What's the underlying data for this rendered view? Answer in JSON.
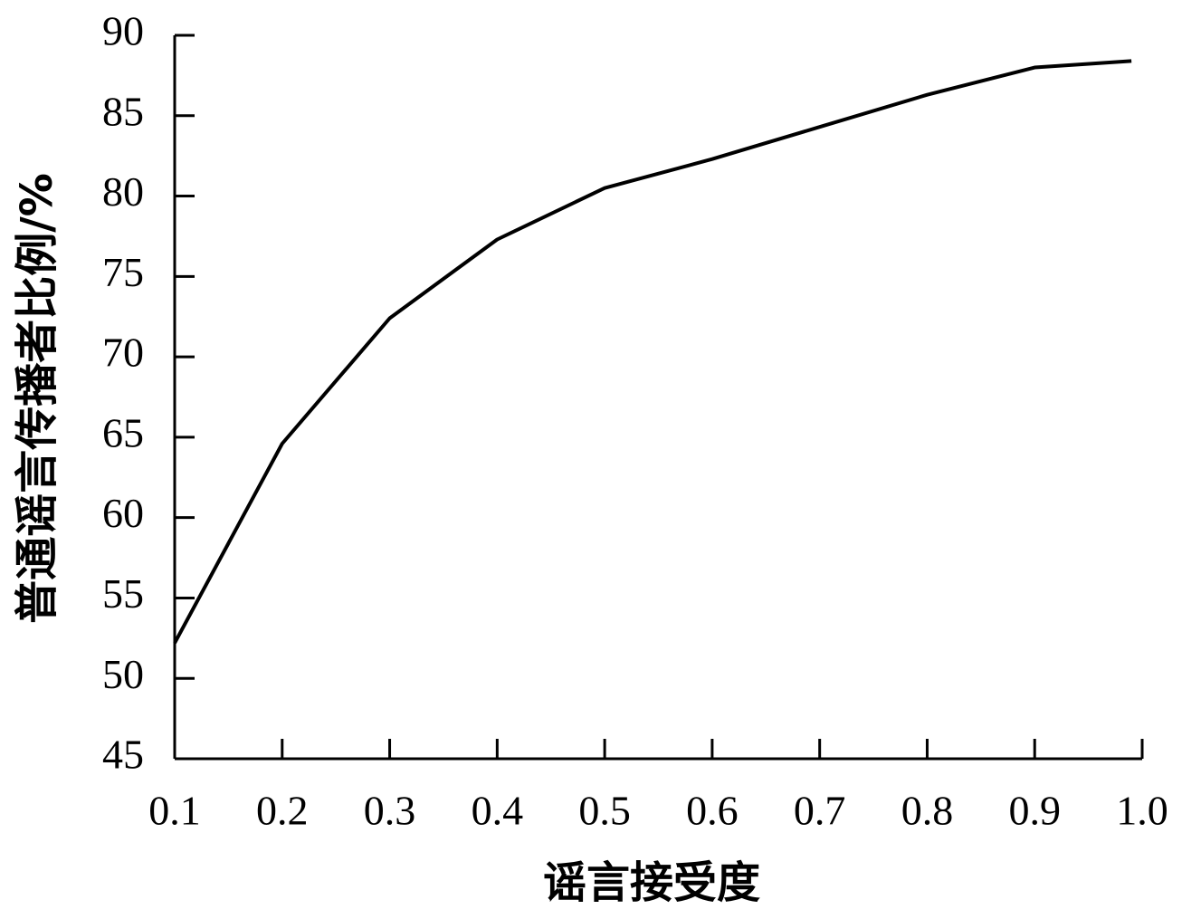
{
  "chart_data": {
    "type": "line",
    "xlabel": "谣言接受度",
    "ylabel": "普通谣言传播者比例/%",
    "x": [
      0.1,
      0.2,
      0.3,
      0.4,
      0.5,
      0.6,
      0.7,
      0.8,
      0.9,
      0.99
    ],
    "values": [
      52.2,
      64.6,
      72.4,
      77.3,
      80.5,
      82.3,
      84.3,
      86.3,
      88.0,
      88.4
    ],
    "color": "#000000",
    "xlim": [
      0.1,
      1
    ],
    "xticks": [
      0.1,
      0.2,
      0.3,
      0.4,
      0.5,
      0.6,
      0.7,
      0.8,
      0.9,
      {
        "value": 1,
        "label": "1.0"
      }
    ],
    "ylim": [
      45,
      90
    ],
    "yticks": [
      45,
      50,
      55,
      60,
      65,
      70,
      75,
      80,
      85,
      90
    ],
    "grid": false
  }
}
